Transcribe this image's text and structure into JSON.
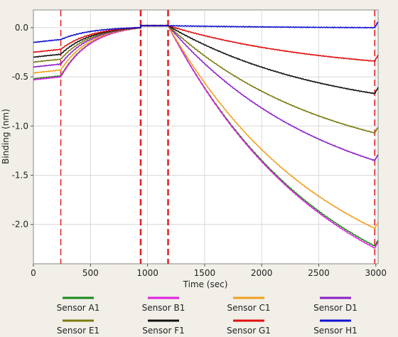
{
  "chart_data": {
    "type": "line",
    "title": "",
    "xlabel": "Time (sec)",
    "ylabel": "Binding (nm)",
    "xlim": [
      0,
      3020
    ],
    "ylim": [
      -2.4,
      0.18
    ],
    "x_ticks": [
      0,
      500,
      1000,
      1500,
      2000,
      2500,
      3000
    ],
    "y_ticks": [
      0.0,
      -0.5,
      -1.0,
      -1.5,
      -2.0
    ],
    "y_tick_labels": [
      "0.0",
      "-0.5",
      "-1.0",
      "-1.5",
      "-2.0"
    ],
    "grid": true,
    "legend_position": "bottom",
    "step_markers": [
      {
        "x": 240,
        "color": "#e02020",
        "style": "dashed",
        "weight": "thin"
      },
      {
        "x": 940,
        "color": "#e02020",
        "style": "dashed",
        "weight": "bold"
      },
      {
        "x": 1180,
        "color": "#e02020",
        "style": "dashed",
        "weight": "bold"
      },
      {
        "x": 2990,
        "color": "#e02020",
        "style": "dashed",
        "weight": "thin"
      }
    ],
    "series": [
      {
        "name": "Sensor A1",
        "color": "#1a8a1a",
        "baseline": -0.52,
        "assoc_end": 0.02,
        "dissoc_end": -2.22
      },
      {
        "name": "Sensor B1",
        "color": "#e020e0",
        "baseline": -0.53,
        "assoc_end": 0.02,
        "dissoc_end": -2.24
      },
      {
        "name": "Sensor C1",
        "color": "#f0a020",
        "baseline": -0.46,
        "assoc_end": 0.02,
        "dissoc_end": -2.04
      },
      {
        "name": "Sensor D1",
        "color": "#8a20c8",
        "baseline": -0.4,
        "assoc_end": 0.02,
        "dissoc_end": -1.35
      },
      {
        "name": "Sensor E1",
        "color": "#7a7a10",
        "baseline": -0.35,
        "assoc_end": 0.02,
        "dissoc_end": -1.07
      },
      {
        "name": "Sensor F1",
        "color": "#111111",
        "baseline": -0.3,
        "assoc_end": 0.02,
        "dissoc_end": -0.67
      },
      {
        "name": "Sensor G1",
        "color": "#e01010",
        "baseline": -0.25,
        "assoc_end": 0.02,
        "dissoc_end": -0.34
      },
      {
        "name": "Sensor H1",
        "color": "#1010d0",
        "baseline": -0.15,
        "assoc_end": 0.02,
        "dissoc_end": 0.0
      }
    ]
  }
}
